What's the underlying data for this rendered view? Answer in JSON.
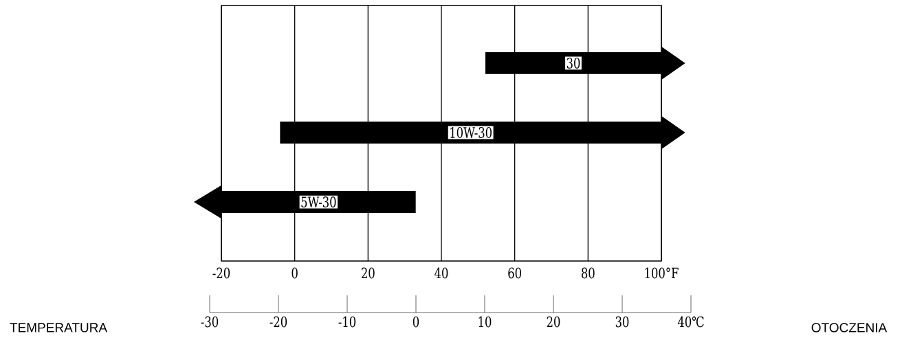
{
  "chart_data": {
    "type": "bar",
    "orientation": "horizontal",
    "categories": [
      "30",
      "10W-30",
      "5W-30"
    ],
    "base": [
      52,
      -4,
      -20
    ],
    "values": [
      48,
      104,
      53
    ],
    "color": "#000000",
    "xlim": [
      -20,
      100
    ],
    "xticks": [
      -20,
      0,
      20,
      40,
      60,
      80,
      {
        "value": 100,
        "label": "100°F"
      }
    ],
    "x2lim": [
      -30,
      40
    ],
    "x2ticks": [
      -30,
      -20,
      -10,
      0,
      10,
      20,
      30,
      {
        "value": 40,
        "label": "40℃"
      }
    ],
    "grid": "x",
    "annotations": [
      "TEMPERATURA",
      "OTOCZENIA"
    ]
  }
}
